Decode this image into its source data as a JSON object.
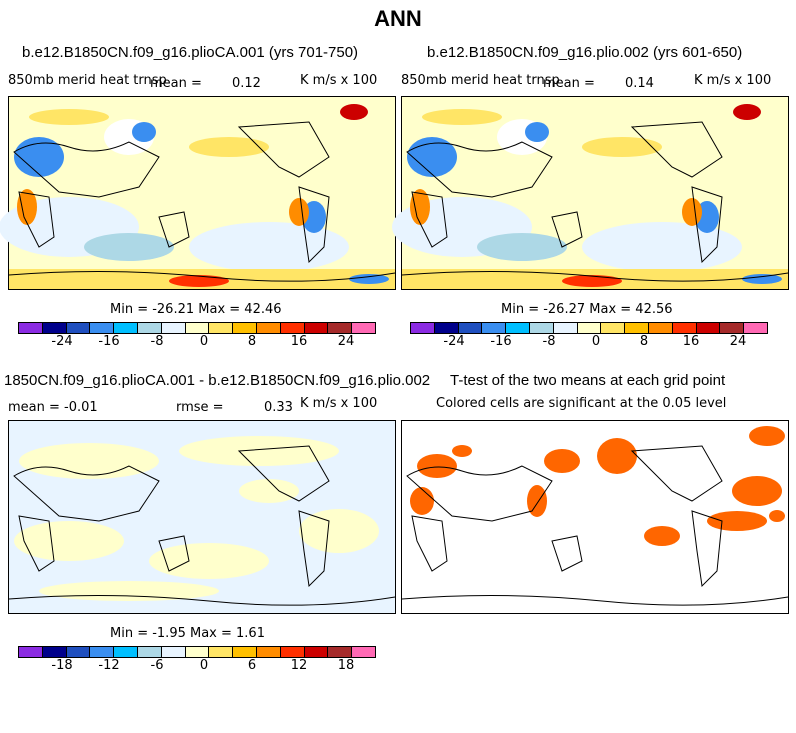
{
  "title": "ANN",
  "colors": {
    "main_scale": [
      "#8b2be2",
      "#00008b",
      "#1f4fbf",
      "#3a8ef0",
      "#00bfff",
      "#add8e6",
      "#e8f4ff",
      "#ffffcc",
      "#ffe566",
      "#ffc000",
      "#ff8c00",
      "#ff3000",
      "#cc0000",
      "#a52a2a",
      "#ff69b4"
    ],
    "diff_scale": [
      "#8b2be2",
      "#00008b",
      "#1f4fbf",
      "#3a8ef0",
      "#00bfff",
      "#add8e6",
      "#e8f4ff",
      "#ffffcc",
      "#ffe566",
      "#ffc000",
      "#ff8c00",
      "#ff3000",
      "#cc0000",
      "#a52a2a",
      "#ff69b4"
    ],
    "significance": "#ff6600"
  },
  "panels": {
    "p1": {
      "title": "b.e12.B1850CN.f09_g16.plioCA.001 (yrs 701-750)",
      "variable": "850mb merid heat trnsp",
      "mean_label": "mean =",
      "mean_value": "0.12",
      "units": "K m/s x 100",
      "min_label": "Min = -26.21 Max = 42.46",
      "ticks": [
        "-24",
        "-16",
        "-8",
        "0",
        "8",
        "16",
        "24"
      ]
    },
    "p2": {
      "title": "b.e12.B1850CN.f09_g16.plio.002 (yrs 601-650)",
      "variable": "850mb merid heat trnsp",
      "mean_label": "mean =",
      "mean_value": "0.14",
      "units": "K m/s x 100",
      "min_label": "Min = -26.27 Max = 42.56",
      "ticks": [
        "-24",
        "-16",
        "-8",
        "0",
        "8",
        "16",
        "24"
      ]
    },
    "p3": {
      "title": "1850CN.f09_g16.plioCA.001 - b.e12.B1850CN.f09_g16.plio.002",
      "mean_label": "mean = -0.01",
      "rmse_label": "rmse =",
      "rmse_value": "0.33",
      "units": "K m/s x 100",
      "min_label": "Min = -1.95 Max = 1.61",
      "ticks": [
        "-18",
        "-12",
        "-6",
        "0",
        "6",
        "12",
        "18"
      ]
    },
    "p4": {
      "title": "T-test of the two means at each grid point",
      "subtitle": "Colored cells are significant at the 0.05 level"
    }
  }
}
